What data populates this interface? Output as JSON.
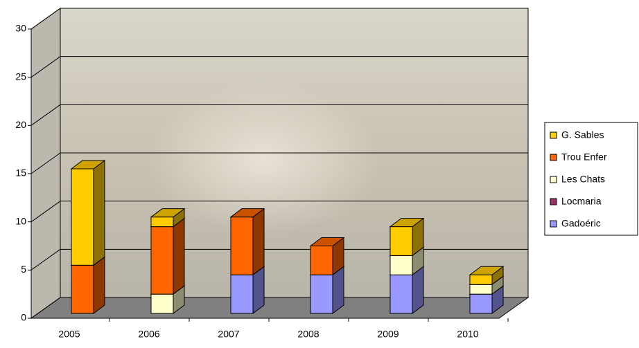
{
  "chart_data": {
    "type": "bar3d-stacked",
    "categories": [
      "2005",
      "2006",
      "2007",
      "2008",
      "2009",
      "2010"
    ],
    "series": [
      {
        "name": "Gadoéric",
        "color": "#9999ff",
        "values": [
          0,
          0,
          4,
          4,
          4,
          2
        ]
      },
      {
        "name": "Locmaria",
        "color": "#993366",
        "values": [
          0,
          0,
          0,
          0,
          0,
          0
        ]
      },
      {
        "name": "Les Chats",
        "color": "#ffffcc",
        "values": [
          0,
          2,
          0,
          0,
          2,
          1
        ]
      },
      {
        "name": "Trou Enfer",
        "color": "#ff6600",
        "values": [
          5,
          7,
          6,
          3,
          0,
          0
        ]
      },
      {
        "name": "G. Sables",
        "color": "#ffcc00",
        "values": [
          10,
          1,
          0,
          0,
          3,
          1
        ]
      }
    ],
    "ylim": [
      0,
      30
    ],
    "yticks": [
      0,
      5,
      10,
      15,
      20,
      25,
      30
    ],
    "grid": true,
    "legend": "right"
  }
}
